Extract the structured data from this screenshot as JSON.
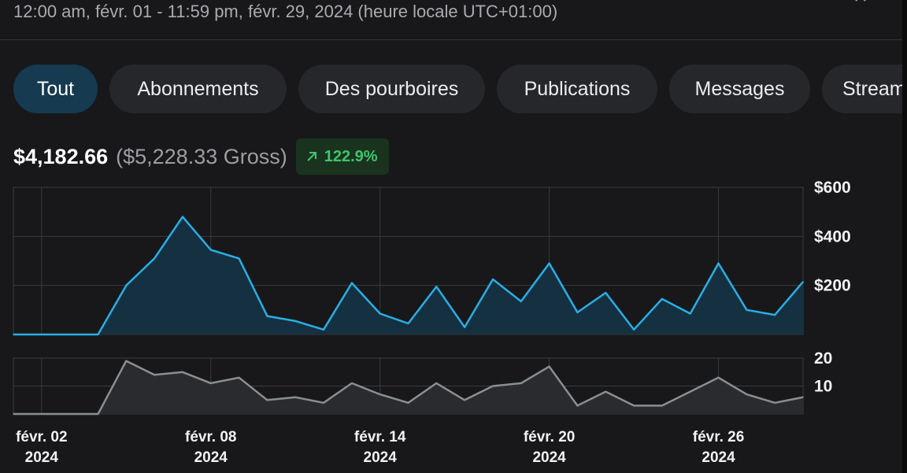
{
  "header": {
    "date_range": "12:00 am, févr. 01 - 11:59 pm, févr. 29, 2024 (heure locale UTC+01:00)",
    "corner_icon": "chevron-up-icon"
  },
  "tabs": [
    {
      "label": "Tout",
      "active": true
    },
    {
      "label": "Abonnements",
      "active": false
    },
    {
      "label": "Des pourboires",
      "active": false
    },
    {
      "label": "Publications",
      "active": false
    },
    {
      "label": "Messages",
      "active": false
    },
    {
      "label": "Stream",
      "active": false
    }
  ],
  "summary": {
    "net": "$4,182.66",
    "gross": "($5,228.33 Gross)",
    "change": "122.9%",
    "change_icon": "trend-up-arrow-icon"
  },
  "colors": {
    "earnings_line": "#29aee6",
    "earnings_fill": "#153141",
    "count_line": "#8a8e93",
    "count_fill": "#2a2b2e",
    "badge_green": "#3ec56a",
    "active_tab": "#163a4f"
  },
  "chart_data": [
    {
      "type": "area",
      "x": [
        "2024-02-01",
        "2024-02-02",
        "2024-02-03",
        "2024-02-04",
        "2024-02-05",
        "2024-02-06",
        "2024-02-07",
        "2024-02-08",
        "2024-02-09",
        "2024-02-10",
        "2024-02-11",
        "2024-02-12",
        "2024-02-13",
        "2024-02-14",
        "2024-02-15",
        "2024-02-16",
        "2024-02-17",
        "2024-02-18",
        "2024-02-19",
        "2024-02-20",
        "2024-02-21",
        "2024-02-22",
        "2024-02-23",
        "2024-02-24",
        "2024-02-25",
        "2024-02-26",
        "2024-02-27",
        "2024-02-28",
        "2024-02-29"
      ],
      "values": [
        0,
        0,
        0,
        0,
        200,
        310,
        480,
        345,
        310,
        75,
        55,
        20,
        210,
        85,
        45,
        195,
        30,
        225,
        135,
        290,
        90,
        170,
        20,
        145,
        85,
        290,
        100,
        80,
        215
      ],
      "yticks": [
        "$200",
        "$400",
        "$600"
      ],
      "ylim": [
        0,
        600
      ],
      "grid": true
    },
    {
      "type": "area",
      "x": [
        "2024-02-01",
        "2024-02-02",
        "2024-02-03",
        "2024-02-04",
        "2024-02-05",
        "2024-02-06",
        "2024-02-07",
        "2024-02-08",
        "2024-02-09",
        "2024-02-10",
        "2024-02-11",
        "2024-02-12",
        "2024-02-13",
        "2024-02-14",
        "2024-02-15",
        "2024-02-16",
        "2024-02-17",
        "2024-02-18",
        "2024-02-19",
        "2024-02-20",
        "2024-02-21",
        "2024-02-22",
        "2024-02-23",
        "2024-02-24",
        "2024-02-25",
        "2024-02-26",
        "2024-02-27",
        "2024-02-28",
        "2024-02-29"
      ],
      "values": [
        0,
        0,
        0,
        0,
        19,
        14,
        15,
        11,
        13,
        5,
        6,
        4,
        11,
        7,
        4,
        11,
        5,
        10,
        11,
        17,
        3,
        8,
        3,
        3,
        8,
        13,
        7,
        4,
        6
      ],
      "yticks": [
        "10",
        "20"
      ],
      "ylim": [
        0,
        20
      ],
      "grid": true
    }
  ],
  "x_axis": {
    "tick_labels": [
      {
        "day": "févr. 02",
        "year": "2024"
      },
      {
        "day": "févr. 08",
        "year": "2024"
      },
      {
        "day": "févr. 14",
        "year": "2024"
      },
      {
        "day": "févr. 20",
        "year": "2024"
      },
      {
        "day": "févr. 26",
        "year": "2024"
      }
    ]
  }
}
